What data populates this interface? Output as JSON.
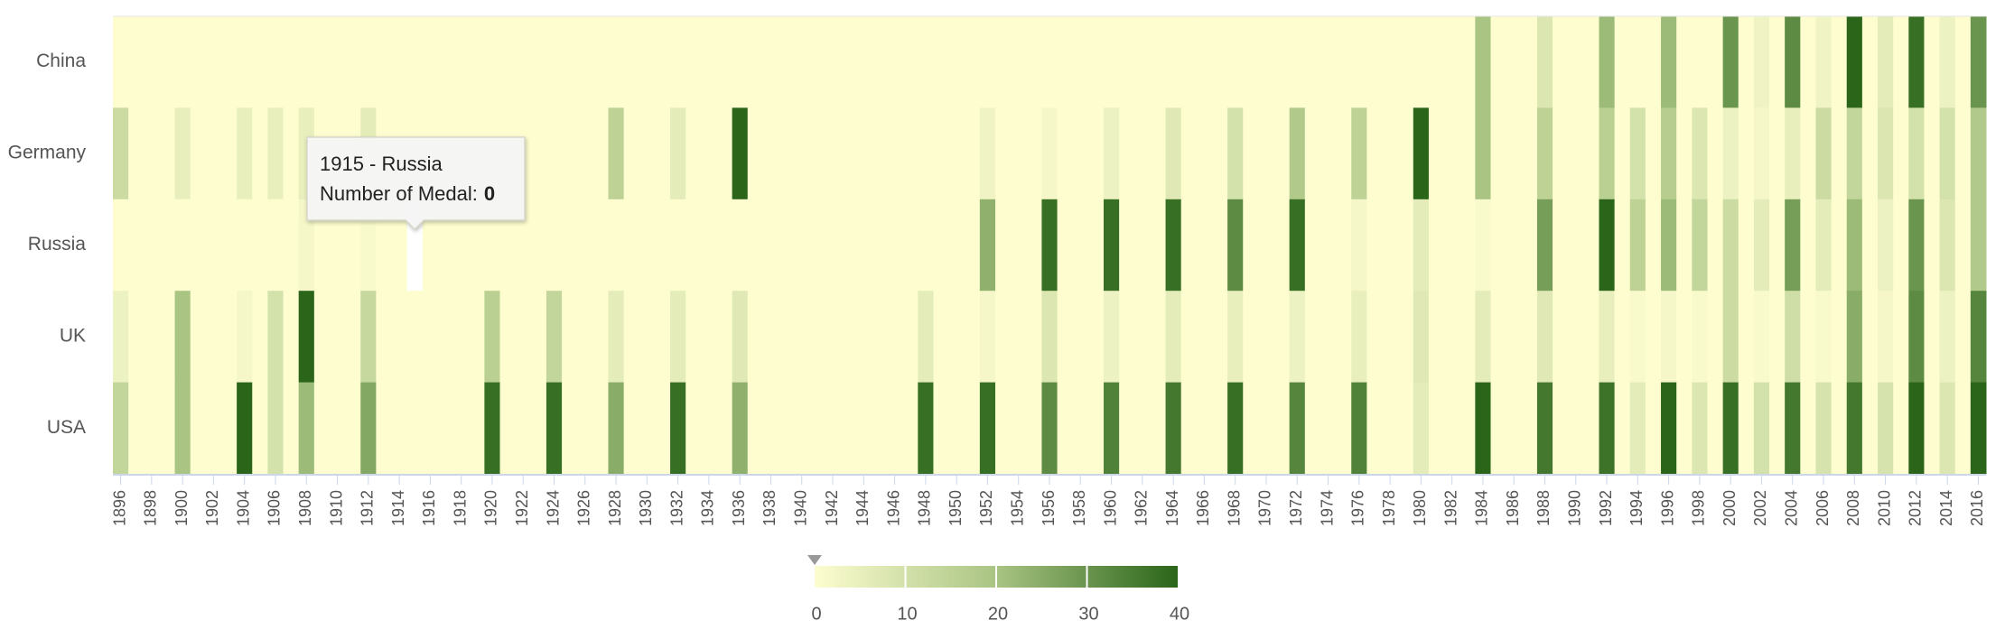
{
  "chart_data": {
    "type": "heatmap",
    "x": [
      1896,
      1897,
      1898,
      1899,
      1900,
      1901,
      1902,
      1903,
      1904,
      1905,
      1906,
      1907,
      1908,
      1909,
      1910,
      1911,
      1912,
      1913,
      1914,
      1915,
      1916,
      1917,
      1918,
      1919,
      1920,
      1921,
      1922,
      1923,
      1924,
      1925,
      1926,
      1927,
      1928,
      1929,
      1930,
      1931,
      1932,
      1933,
      1934,
      1935,
      1936,
      1937,
      1938,
      1939,
      1940,
      1941,
      1942,
      1943,
      1944,
      1945,
      1946,
      1947,
      1948,
      1949,
      1950,
      1951,
      1952,
      1953,
      1954,
      1955,
      1956,
      1957,
      1958,
      1959,
      1960,
      1961,
      1962,
      1963,
      1964,
      1965,
      1966,
      1967,
      1968,
      1969,
      1970,
      1971,
      1972,
      1973,
      1974,
      1975,
      1976,
      1977,
      1978,
      1979,
      1980,
      1981,
      1982,
      1983,
      1984,
      1985,
      1986,
      1987,
      1988,
      1989,
      1990,
      1991,
      1992,
      1993,
      1994,
      1995,
      1996,
      1997,
      1998,
      1999,
      2000,
      2001,
      2002,
      2003,
      2004,
      2005,
      2006,
      2007,
      2008,
      2009,
      2010,
      2011,
      2012,
      2013,
      2014,
      2015,
      2016
    ],
    "xlim": [
      1895.5,
      2016.5
    ],
    "xticks": [
      1896,
      1898,
      1900,
      1902,
      1904,
      1906,
      1908,
      1910,
      1912,
      1914,
      1916,
      1918,
      1920,
      1922,
      1924,
      1926,
      1928,
      1930,
      1932,
      1934,
      1936,
      1938,
      1940,
      1942,
      1944,
      1946,
      1948,
      1950,
      1952,
      1954,
      1956,
      1958,
      1960,
      1962,
      1964,
      1966,
      1968,
      1970,
      1972,
      1974,
      1976,
      1978,
      1980,
      1982,
      1984,
      1986,
      1988,
      1990,
      1992,
      1994,
      1996,
      1998,
      2000,
      2002,
      2004,
      2006,
      2008,
      2010,
      2012,
      2014,
      2016
    ],
    "series": [
      {
        "name": "China",
        "values": [
          0,
          0,
          0,
          0,
          0,
          0,
          0,
          0,
          0,
          0,
          0,
          0,
          0,
          0,
          0,
          0,
          0,
          0,
          0,
          0,
          0,
          0,
          0,
          0,
          0,
          0,
          0,
          0,
          0,
          0,
          0,
          0,
          0,
          0,
          0,
          0,
          0,
          0,
          0,
          0,
          0,
          0,
          0,
          0,
          0,
          0,
          0,
          0,
          0,
          0,
          0,
          0,
          0,
          0,
          0,
          0,
          0,
          0,
          0,
          0,
          0,
          0,
          0,
          0,
          0,
          0,
          0,
          0,
          0,
          0,
          0,
          0,
          0,
          0,
          0,
          0,
          0,
          0,
          0,
          0,
          0,
          0,
          0,
          0,
          0,
          0,
          0,
          0,
          20,
          0,
          0,
          0,
          8,
          0,
          0,
          0,
          22,
          0,
          0,
          0,
          22,
          0,
          0,
          0,
          30,
          0,
          3,
          0,
          32,
          0,
          3,
          0,
          40,
          0,
          6,
          0,
          38,
          0,
          4,
          0,
          30
        ]
      },
      {
        "name": "Germany",
        "values": [
          12,
          0,
          0,
          0,
          5,
          0,
          0,
          0,
          5,
          0,
          5,
          0,
          5,
          0,
          0,
          0,
          6,
          0,
          0,
          0,
          0,
          0,
          0,
          0,
          0,
          0,
          0,
          0,
          0,
          0,
          0,
          0,
          15,
          0,
          0,
          0,
          6,
          0,
          0,
          0,
          40,
          0,
          0,
          0,
          0,
          0,
          0,
          0,
          0,
          0,
          0,
          0,
          0,
          0,
          0,
          0,
          3,
          0,
          0,
          0,
          2,
          0,
          0,
          0,
          4,
          0,
          0,
          0,
          7,
          0,
          0,
          0,
          10,
          0,
          0,
          0,
          18,
          0,
          0,
          0,
          15,
          0,
          0,
          0,
          40,
          0,
          0,
          0,
          20,
          0,
          0,
          0,
          15,
          0,
          0,
          0,
          16,
          0,
          10,
          0,
          17,
          0,
          8,
          0,
          4,
          0,
          2,
          0,
          5,
          0,
          12,
          0,
          14,
          0,
          8,
          0,
          10,
          0,
          10,
          0,
          18
        ]
      },
      {
        "name": "Russia",
        "values": [
          0,
          0,
          0,
          0,
          0,
          0,
          0,
          0,
          0,
          0,
          0,
          0,
          2,
          0,
          0,
          0,
          1,
          0,
          0,
          0,
          0,
          0,
          0,
          0,
          0,
          0,
          0,
          0,
          0,
          0,
          0,
          0,
          0,
          0,
          0,
          0,
          0,
          0,
          0,
          0,
          0,
          0,
          0,
          0,
          0,
          0,
          0,
          0,
          0,
          0,
          0,
          0,
          0,
          0,
          0,
          0,
          24,
          0,
          0,
          0,
          38,
          0,
          0,
          0,
          38,
          0,
          0,
          0,
          38,
          0,
          0,
          0,
          32,
          0,
          0,
          0,
          38,
          0,
          0,
          0,
          2,
          0,
          0,
          0,
          6,
          0,
          0,
          0,
          1,
          0,
          0,
          0,
          28,
          0,
          0,
          0,
          40,
          0,
          15,
          0,
          22,
          0,
          14,
          0,
          12,
          0,
          6,
          0,
          28,
          0,
          6,
          0,
          22,
          0,
          4,
          0,
          30,
          0,
          8,
          0,
          18
        ]
      },
      {
        "name": "UK",
        "values": [
          4,
          0,
          0,
          0,
          20,
          0,
          0,
          0,
          2,
          0,
          10,
          0,
          40,
          0,
          0,
          0,
          13,
          0,
          0,
          0,
          0,
          0,
          0,
          0,
          16,
          0,
          0,
          0,
          14,
          0,
          0,
          0,
          6,
          0,
          0,
          0,
          6,
          0,
          0,
          0,
          7,
          0,
          0,
          0,
          0,
          0,
          0,
          0,
          0,
          0,
          0,
          0,
          6,
          0,
          0,
          0,
          2,
          0,
          0,
          0,
          8,
          0,
          0,
          0,
          4,
          0,
          0,
          0,
          6,
          0,
          0,
          0,
          5,
          0,
          0,
          0,
          4,
          0,
          0,
          0,
          5,
          0,
          0,
          0,
          7,
          0,
          0,
          0,
          6,
          0,
          0,
          0,
          7,
          0,
          0,
          0,
          5,
          0,
          1,
          0,
          2,
          0,
          1,
          0,
          12,
          0,
          1,
          0,
          11,
          0,
          1,
          0,
          25,
          0,
          2,
          0,
          32,
          0,
          4,
          0,
          33
        ]
      },
      {
        "name": "USA",
        "values": [
          14,
          0,
          0,
          0,
          20,
          0,
          0,
          0,
          40,
          0,
          10,
          0,
          22,
          0,
          0,
          0,
          26,
          0,
          0,
          0,
          0,
          0,
          0,
          0,
          38,
          0,
          0,
          0,
          38,
          0,
          0,
          0,
          25,
          0,
          0,
          0,
          38,
          0,
          0,
          0,
          24,
          0,
          0,
          0,
          0,
          0,
          0,
          0,
          0,
          0,
          0,
          0,
          38,
          0,
          0,
          0,
          38,
          0,
          0,
          0,
          32,
          0,
          0,
          0,
          34,
          0,
          0,
          0,
          36,
          0,
          0,
          0,
          38,
          0,
          0,
          0,
          33,
          0,
          0,
          0,
          34,
          0,
          0,
          0,
          6,
          0,
          0,
          0,
          40,
          0,
          0,
          0,
          36,
          0,
          0,
          0,
          37,
          0,
          6,
          0,
          40,
          0,
          8,
          0,
          38,
          0,
          10,
          0,
          36,
          0,
          9,
          0,
          36,
          0,
          9,
          0,
          40,
          0,
          8,
          0,
          40
        ]
      }
    ],
    "colorbar": {
      "lim": [
        0,
        40
      ],
      "ticks": [
        0,
        10,
        20,
        30,
        40
      ],
      "colors": [
        "#fdfdd0",
        "#a9c483",
        "#2a6519"
      ]
    },
    "tooltip": {
      "title": "1915 - Russia",
      "label": "Number of Medal:",
      "value": 0
    }
  }
}
